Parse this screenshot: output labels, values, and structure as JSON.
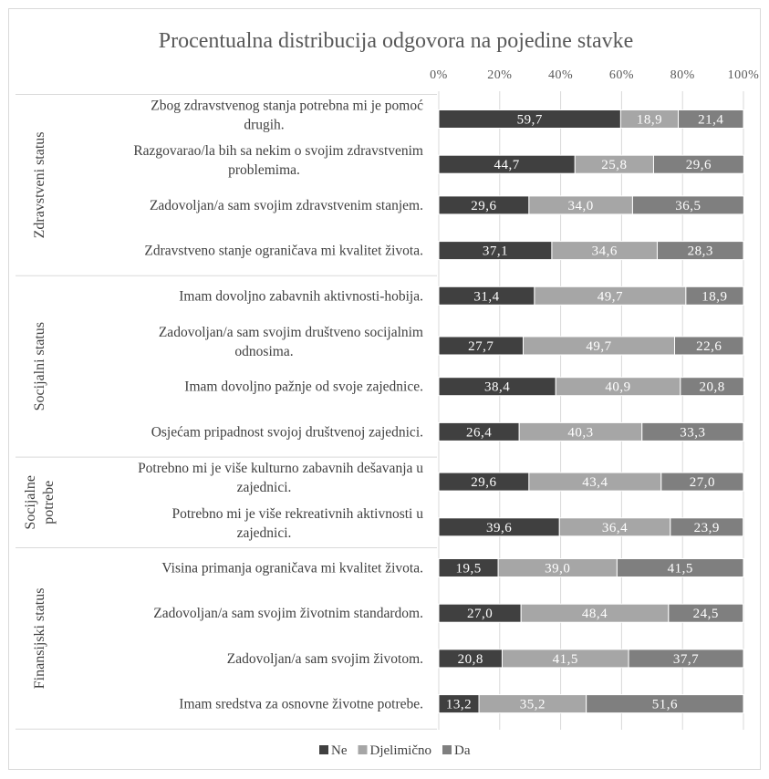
{
  "chart_data": {
    "type": "bar",
    "orientation": "horizontal",
    "stacked": true,
    "title": "Procentualna distribucija odgovora na pojedine stavke",
    "xlabel": "",
    "ylabel": "",
    "xlim": [
      0,
      100
    ],
    "x_ticks": [
      "0%",
      "20%",
      "40%",
      "60%",
      "80%",
      "100%"
    ],
    "grid": true,
    "legend_position": "bottom",
    "colors": {
      "Ne": "#404040",
      "Djelimično": "#a6a6a6",
      "Da": "#7f7f7f"
    },
    "groups": [
      {
        "name": "Zdravstveni status",
        "label_lines": [
          "Zdravstveni status"
        ],
        "categories": [
          0,
          1,
          2,
          3
        ]
      },
      {
        "name": "Socijalni status",
        "label_lines": [
          "Socijalni status"
        ],
        "categories": [
          4,
          5,
          6,
          7
        ]
      },
      {
        "name": "Socijalne potrebe",
        "label_lines": [
          "Socijalne",
          "potrebe"
        ],
        "categories": [
          8,
          9
        ]
      },
      {
        "name": "Finansijski status",
        "label_lines": [
          "Finansijski status"
        ],
        "categories": [
          10,
          11,
          12,
          13
        ]
      }
    ],
    "categories": [
      [
        "Zbog zdravstvenog stanja potrebna mi je pomoć",
        "drugih."
      ],
      [
        "Razgovarao/la bih sa nekim o svojim zdravstvenim",
        "problemima."
      ],
      [
        "Zadovoljan/a sam svojim zdravstvenim stanjem."
      ],
      [
        "Zdravstveno stanje ograničava mi kvalitet života."
      ],
      [
        "Imam dovoljno zabavnih aktivnosti-hobija."
      ],
      [
        "Zadovoljan/a sam svojim društveno socijalnim",
        "odnosima."
      ],
      [
        "Imam dovoljno pažnje od svoje zajednice."
      ],
      [
        "Osjećam pripadnost svojoj društvenoj zajednici."
      ],
      [
        "Potrebno mi je više kulturno zabavnih dešavanja u",
        "zajednici."
      ],
      [
        "Potrebno mi je više rekreativnih aktivnosti u",
        "zajednici."
      ],
      [
        "Visina primanja ograničava mi kvalitet života."
      ],
      [
        "Zadovoljan/a sam svojim životnim standardom."
      ],
      [
        "Zadovoljan/a sam svojim životom."
      ],
      [
        "Imam sredstva za osnovne životne potrebe."
      ]
    ],
    "series": [
      {
        "name": "Ne",
        "values": [
          59.7,
          44.7,
          29.6,
          37.1,
          31.4,
          27.7,
          38.4,
          26.4,
          29.6,
          39.6,
          19.5,
          27.0,
          20.8,
          13.2
        ]
      },
      {
        "name": "Djelimično",
        "values": [
          18.9,
          25.8,
          34.0,
          34.6,
          49.7,
          49.7,
          40.9,
          40.3,
          43.4,
          36.4,
          39.0,
          48.4,
          41.5,
          35.2
        ]
      },
      {
        "name": "Da",
        "values": [
          21.4,
          29.6,
          36.5,
          28.3,
          18.9,
          22.6,
          20.8,
          33.3,
          27.0,
          23.9,
          41.5,
          24.5,
          37.7,
          51.6
        ]
      }
    ]
  }
}
